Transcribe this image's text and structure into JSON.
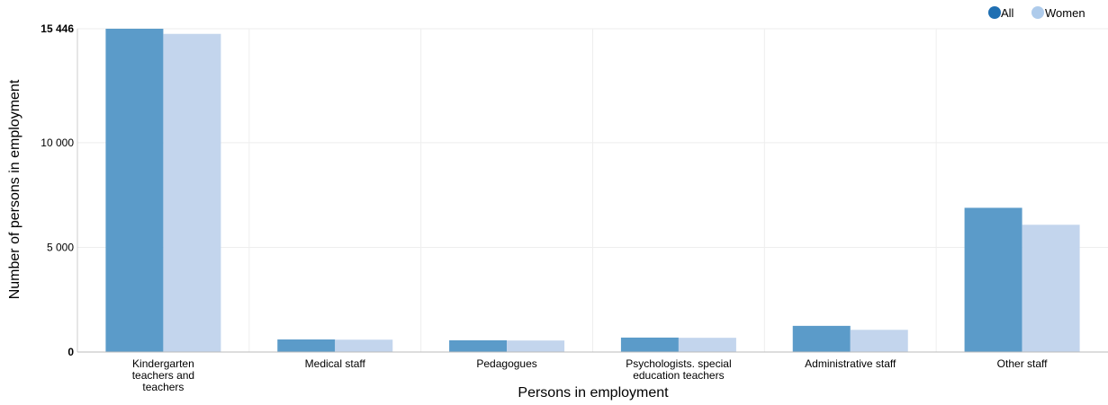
{
  "chart_data": {
    "type": "bar",
    "categories": [
      [
        "Kindergarten",
        "teachers and",
        "teachers"
      ],
      [
        "Medical staff"
      ],
      [
        "Pedagogues"
      ],
      [
        "Psychologists. special",
        "education teachers"
      ],
      [
        "Administrative staff"
      ],
      [
        "Other staff"
      ]
    ],
    "series": [
      {
        "name": "All",
        "color": "#5b9bc9",
        "values": [
          15446,
          600,
          560,
          690,
          1250,
          6890
        ]
      },
      {
        "name": "Women",
        "color": "#c3d5ed",
        "values": [
          15200,
          590,
          550,
          680,
          1060,
          6080
        ]
      }
    ],
    "xlabel": "Persons in employment",
    "ylabel": "Number of persons in employment",
    "ylim": [
      0,
      15446
    ],
    "yticks": [
      {
        "value": 0,
        "label": "0",
        "bold": true
      },
      {
        "value": 5000,
        "label": "5 000",
        "bold": false
      },
      {
        "value": 10000,
        "label": "10 000",
        "bold": false
      },
      {
        "value": 15446,
        "label": "15 446",
        "bold": true
      }
    ],
    "grid": true,
    "legend_position": "top-right",
    "legend_colors": {
      "All": "#1f6fb2",
      "Women": "#aecbeb"
    }
  }
}
